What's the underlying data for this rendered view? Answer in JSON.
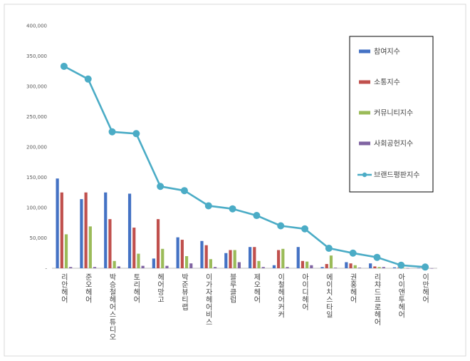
{
  "chart_data": {
    "type": "bar",
    "categories": [
      "리안헤어",
      "준오헤어",
      "박승철헤어스튜디오",
      "토리헤어",
      "헤어망고",
      "박준뷰티랩",
      "이가자헤어비스",
      "블루클럽",
      "제오헤어",
      "이철헤어커커",
      "아이디헤어",
      "에이치스타일",
      "권홍헤어",
      "리챠드프로헤어",
      "아이앤투헤어",
      "이만헤어"
    ],
    "series": [
      {
        "name": "참여지수",
        "kind": "bar",
        "color": "#4472C4",
        "values": [
          148000,
          114000,
          125000,
          123000,
          16000,
          51000,
          45000,
          25000,
          35000,
          5000,
          35000,
          2000,
          10000,
          8000,
          1500,
          500
        ]
      },
      {
        "name": "소통지수",
        "kind": "bar",
        "color": "#C0504D",
        "values": [
          125000,
          125000,
          81000,
          67000,
          81000,
          47000,
          38000,
          30000,
          35000,
          30000,
          12000,
          7000,
          8000,
          3000,
          1000,
          300
        ]
      },
      {
        "name": "커뮤니티지수",
        "kind": "bar",
        "color": "#9BBB59",
        "values": [
          56000,
          69000,
          12000,
          24000,
          32000,
          20000,
          15000,
          30000,
          12000,
          32000,
          11000,
          21000,
          5000,
          2000,
          500,
          200
        ]
      },
      {
        "name": "사회공헌지수",
        "kind": "bar",
        "color": "#8064A2",
        "values": [
          2000,
          2000,
          3000,
          4000,
          4000,
          8000,
          2000,
          10000,
          2000,
          2000,
          5000,
          1000,
          1000,
          2000,
          300,
          100
        ]
      },
      {
        "name": "브랜드평판지수",
        "kind": "line",
        "color": "#4BACC6",
        "values": [
          333000,
          312000,
          225000,
          222000,
          135000,
          128000,
          103000,
          98000,
          87000,
          70000,
          65000,
          33000,
          25000,
          18000,
          5000,
          2000
        ]
      }
    ],
    "yticks": [
      "400,000",
      "350,000",
      "300,000",
      "250,000",
      "200,000",
      "150,000",
      "100,000",
      "50,000",
      "-"
    ],
    "ylim": [
      0,
      400000
    ],
    "grid": false,
    "legend": "right",
    "title": "",
    "xlabel": "",
    "ylabel": ""
  }
}
